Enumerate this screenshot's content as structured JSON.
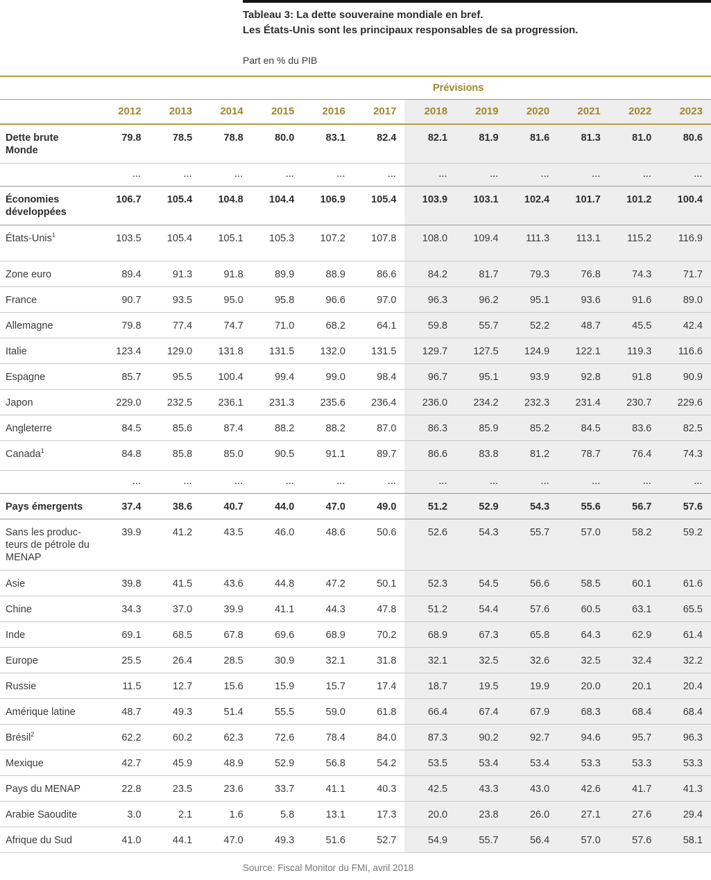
{
  "accent": {
    "gold_text": "#a3862a",
    "gold_line": "#b79b42",
    "shade_bg": "#eeeeee",
    "top_bar": "#141414"
  },
  "header": {
    "title_line1": "Tableau 3: La dette souveraine mondiale en bref.",
    "title_line2": "Les États-Unis sont les principaux responsables de sa progression.",
    "unit": "Part en % du PIB"
  },
  "table": {
    "forecast_label": "Prévisions",
    "years": [
      "2012",
      "2013",
      "2014",
      "2015",
      "2016",
      "2017",
      "2018",
      "2019",
      "2020",
      "2021",
      "2022",
      "2023"
    ],
    "forecast_start_index": 6,
    "rows": [
      {
        "label": "Dette brute\nMonde",
        "sup": "",
        "bold": true,
        "variant": "twoline",
        "sep": "none",
        "values": [
          "79.8",
          "78.5",
          "78.8",
          "80.0",
          "83.1",
          "82.4",
          "82.1",
          "81.9",
          "81.6",
          "81.3",
          "81.0",
          "80.6"
        ]
      },
      {
        "label": "",
        "sup": "",
        "bold": false,
        "variant": "dots",
        "sep": "light",
        "values": [
          "...",
          "...",
          "...",
          "...",
          "...",
          "...",
          "...",
          "...",
          "...",
          "...",
          "...",
          "..."
        ]
      },
      {
        "label": "Économies\ndéveloppées",
        "sup": "",
        "bold": true,
        "variant": "twoline",
        "sep": "dark",
        "values": [
          "106.7",
          "105.4",
          "104.8",
          "104.4",
          "106.9",
          "105.4",
          "103.9",
          "103.1",
          "102.4",
          "101.7",
          "101.2",
          "100.4"
        ]
      },
      {
        "label": "États-Unis",
        "sup": "1",
        "bold": false,
        "variant": "tallpad",
        "sep": "dark",
        "values": [
          "103.5",
          "105.4",
          "105.1",
          "105.3",
          "107.2",
          "107.8",
          "108.0",
          "109.4",
          "111.3",
          "113.1",
          "115.2",
          "116.9"
        ]
      },
      {
        "label": "Zone euro",
        "sup": "",
        "bold": false,
        "variant": "normal",
        "sep": "light",
        "values": [
          "89.4",
          "91.3",
          "91.8",
          "89.9",
          "88.9",
          "86.6",
          "84.2",
          "81.7",
          "79.3",
          "76.8",
          "74.3",
          "71.7"
        ]
      },
      {
        "label": "France",
        "sup": "",
        "bold": false,
        "variant": "normal",
        "sep": "light",
        "values": [
          "90.7",
          "93.5",
          "95.0",
          "95.8",
          "96.6",
          "97.0",
          "96.3",
          "96.2",
          "95.1",
          "93.6",
          "91.6",
          "89.0"
        ]
      },
      {
        "label": "Allemagne",
        "sup": "",
        "bold": false,
        "variant": "normal",
        "sep": "light",
        "values": [
          "79.8",
          "77.4",
          "74.7",
          "71.0",
          "68.2",
          "64.1",
          "59.8",
          "55.7",
          "52.2",
          "48.7",
          "45.5",
          "42.4"
        ]
      },
      {
        "label": "Italie",
        "sup": "",
        "bold": false,
        "variant": "normal",
        "sep": "light",
        "values": [
          "123.4",
          "129.0",
          "131.8",
          "131.5",
          "132.0",
          "131.5",
          "129.7",
          "127.5",
          "124.9",
          "122.1",
          "119.3",
          "116.6"
        ]
      },
      {
        "label": "Espagne",
        "sup": "",
        "bold": false,
        "variant": "normal",
        "sep": "light",
        "values": [
          "85.7",
          "95.5",
          "100.4",
          "99.4",
          "99.0",
          "98.4",
          "96.7",
          "95.1",
          "93.9",
          "92.8",
          "91.8",
          "90.9"
        ]
      },
      {
        "label": "Japon",
        "sup": "",
        "bold": false,
        "variant": "normal",
        "sep": "light",
        "values": [
          "229.0",
          "232.5",
          "236.1",
          "231.3",
          "235.6",
          "236.4",
          "236.0",
          "234.2",
          "232.3",
          "231.4",
          "230.7",
          "229.6"
        ]
      },
      {
        "label": "Angleterre",
        "sup": "",
        "bold": false,
        "variant": "normal",
        "sep": "light",
        "values": [
          "84.5",
          "85.6",
          "87.4",
          "88.2",
          "88.2",
          "87.0",
          "86.3",
          "85.9",
          "85.2",
          "84.5",
          "83.6",
          "82.5"
        ]
      },
      {
        "label": "Canada",
        "sup": "1",
        "bold": false,
        "variant": "midpad",
        "sep": "light",
        "values": [
          "84.8",
          "85.8",
          "85.0",
          "90.5",
          "91.1",
          "89.7",
          "86.6",
          "83.8",
          "81.2",
          "78.7",
          "76.4",
          "74.3"
        ]
      },
      {
        "label": "",
        "sup": "",
        "bold": false,
        "variant": "dots",
        "sep": "light",
        "values": [
          "...",
          "...",
          "...",
          "...",
          "...",
          "...",
          "...",
          "...",
          "...",
          "...",
          "...",
          "..."
        ]
      },
      {
        "label": "Pays émergents",
        "sup": "",
        "bold": true,
        "variant": "normal",
        "sep": "dark",
        "values": [
          "37.4",
          "38.6",
          "40.7",
          "44.0",
          "47.0",
          "49.0",
          "51.2",
          "52.9",
          "54.3",
          "55.6",
          "56.7",
          "57.6"
        ]
      },
      {
        "label": "Sans les produc-\nteurs de pétrole du\nMENAP",
        "sup": "",
        "bold": false,
        "variant": "threeline",
        "sep": "dark",
        "values": [
          "39.9",
          "41.2",
          "43.5",
          "46.0",
          "48.6",
          "50.6",
          "52.6",
          "54.3",
          "55.7",
          "57.0",
          "58.2",
          "59.2"
        ]
      },
      {
        "label": "Asie",
        "sup": "",
        "bold": false,
        "variant": "normal",
        "sep": "light",
        "values": [
          "39.8",
          "41.5",
          "43.6",
          "44.8",
          "47.2",
          "50.1",
          "52.3",
          "54.5",
          "56.6",
          "58.5",
          "60.1",
          "61.6"
        ]
      },
      {
        "label": "Chine",
        "sup": "",
        "bold": false,
        "variant": "normal",
        "sep": "light",
        "values": [
          "34.3",
          "37.0",
          "39.9",
          "41.1",
          "44.3",
          "47.8",
          "51.2",
          "54.4",
          "57.6",
          "60.5",
          "63.1",
          "65.5"
        ]
      },
      {
        "label": "Inde",
        "sup": "",
        "bold": false,
        "variant": "normal",
        "sep": "light",
        "values": [
          "69.1",
          "68.5",
          "67.8",
          "69.6",
          "68.9",
          "70.2",
          "68.9",
          "67.3",
          "65.8",
          "64.3",
          "62.9",
          "61.4"
        ]
      },
      {
        "label": "Europe",
        "sup": "",
        "bold": false,
        "variant": "normal",
        "sep": "light",
        "values": [
          "25.5",
          "26.4",
          "28.5",
          "30.9",
          "32.1",
          "31.8",
          "32.1",
          "32.5",
          "32.6",
          "32.5",
          "32.4",
          "32.2"
        ]
      },
      {
        "label": "Russie",
        "sup": "",
        "bold": false,
        "variant": "normal",
        "sep": "light",
        "values": [
          "11.5",
          "12.7",
          "15.6",
          "15.9",
          "15.7",
          "17.4",
          "18.7",
          "19.5",
          "19.9",
          "20.0",
          "20.1",
          "20.4"
        ]
      },
      {
        "label": "Amérique latine",
        "sup": "",
        "bold": false,
        "variant": "normal",
        "sep": "light",
        "values": [
          "48.7",
          "49.3",
          "51.4",
          "55.5",
          "59.0",
          "61.8",
          "66.4",
          "67.4",
          "67.9",
          "68.3",
          "68.4",
          "68.4"
        ]
      },
      {
        "label": "Brésil",
        "sup": "2",
        "bold": false,
        "variant": "normal",
        "sep": "light",
        "values": [
          "62.2",
          "60.2",
          "62.3",
          "72.6",
          "78.4",
          "84.0",
          "87.3",
          "90.2",
          "92.7",
          "94.6",
          "95.7",
          "96.3"
        ]
      },
      {
        "label": "Mexique",
        "sup": "",
        "bold": false,
        "variant": "normal",
        "sep": "light",
        "values": [
          "42.7",
          "45.9",
          "48.9",
          "52.9",
          "56.8",
          "54.2",
          "53.5",
          "53.4",
          "53.4",
          "53.3",
          "53.3",
          "53.3"
        ]
      },
      {
        "label": "Pays du MENAP",
        "sup": "",
        "bold": false,
        "variant": "normal",
        "sep": "light",
        "values": [
          "22.8",
          "23.5",
          "23.6",
          "33.7",
          "41.1",
          "40.3",
          "42.5",
          "43.3",
          "43.0",
          "42.6",
          "41.7",
          "41.3"
        ]
      },
      {
        "label": "Arabie Saoudite",
        "sup": "",
        "bold": false,
        "variant": "normal",
        "sep": "light",
        "values": [
          "3.0",
          "2.1",
          "1.6",
          "5.8",
          "13.1",
          "17.3",
          "20.0",
          "23.8",
          "26.0",
          "27.1",
          "27.6",
          "29.4"
        ]
      },
      {
        "label": "Afrique du Sud",
        "sup": "",
        "bold": false,
        "variant": "normal",
        "sep": "light",
        "values": [
          "41.0",
          "44.1",
          "47.0",
          "49.3",
          "51.6",
          "52.7",
          "54.9",
          "55.7",
          "56.4",
          "57.0",
          "57.6",
          "58.1"
        ]
      }
    ]
  },
  "footer": {
    "source": "Source: Fiscal Monitor du FMI, avril 2018"
  }
}
